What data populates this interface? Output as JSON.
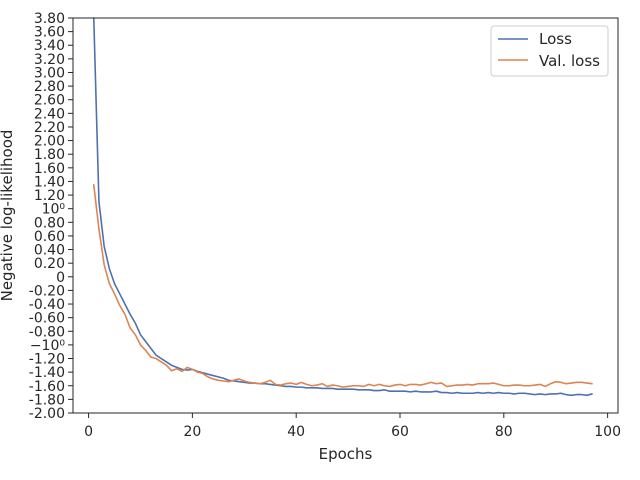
{
  "chart_data": {
    "type": "line",
    "xlabel": "Epochs",
    "ylabel": "Negative log-likelihood",
    "xlim": [
      -3,
      102
    ],
    "ylim": [
      -2.0,
      3.8
    ],
    "grid": false,
    "legend_placement": "top-right",
    "x_ticks": [
      {
        "value": 0,
        "label": "0"
      },
      {
        "value": 20,
        "label": "20"
      },
      {
        "value": 40,
        "label": "40"
      },
      {
        "value": 60,
        "label": "60"
      },
      {
        "value": 80,
        "label": "80"
      },
      {
        "value": 100,
        "label": "100"
      }
    ],
    "y_ticks": [
      {
        "value": -2.0,
        "label": "-2.00"
      },
      {
        "value": -1.8,
        "label": "-1.80"
      },
      {
        "value": -1.6,
        "label": "-1.60"
      },
      {
        "value": -1.4,
        "label": "-1.40"
      },
      {
        "value": -1.2,
        "label": "-1.20"
      },
      {
        "value": -1.0,
        "label": "−10⁰"
      },
      {
        "value": -0.8,
        "label": "-0.80"
      },
      {
        "value": -0.6,
        "label": "-0.60"
      },
      {
        "value": -0.4,
        "label": "-0.40"
      },
      {
        "value": -0.2,
        "label": "-0.20"
      },
      {
        "value": 0.0,
        "label": "0"
      },
      {
        "value": 0.2,
        "label": "0.20"
      },
      {
        "value": 0.4,
        "label": "0.40"
      },
      {
        "value": 0.6,
        "label": "0.60"
      },
      {
        "value": 0.8,
        "label": "0.80"
      },
      {
        "value": 1.0,
        "label": "10⁰"
      },
      {
        "value": 1.2,
        "label": "1.20"
      },
      {
        "value": 1.4,
        "label": "1.40"
      },
      {
        "value": 1.6,
        "label": "1.60"
      },
      {
        "value": 1.8,
        "label": "1.80"
      },
      {
        "value": 2.0,
        "label": "2.00"
      },
      {
        "value": 2.2,
        "label": "2.20"
      },
      {
        "value": 2.4,
        "label": "2.40"
      },
      {
        "value": 2.6,
        "label": "2.60"
      },
      {
        "value": 2.8,
        "label": "2.80"
      },
      {
        "value": 3.0,
        "label": "3.00"
      },
      {
        "value": 3.2,
        "label": "3.20"
      },
      {
        "value": 3.4,
        "label": "3.40"
      },
      {
        "value": 3.6,
        "label": "3.60"
      },
      {
        "value": 3.8,
        "label": "3.80"
      }
    ],
    "series": [
      {
        "name": "Loss",
        "color": "#4c72b0",
        "x": [
          1,
          2,
          3,
          4,
          5,
          6,
          7,
          8,
          9,
          10,
          11,
          12,
          13,
          14,
          15,
          16,
          17,
          18,
          19,
          20,
          21,
          22,
          23,
          24,
          25,
          26,
          27,
          28,
          29,
          30,
          31,
          32,
          33,
          34,
          35,
          36,
          37,
          38,
          39,
          40,
          41,
          42,
          43,
          44,
          45,
          46,
          47,
          48,
          49,
          50,
          51,
          52,
          53,
          54,
          55,
          56,
          57,
          58,
          59,
          60,
          61,
          62,
          63,
          64,
          65,
          66,
          67,
          68,
          69,
          70,
          71,
          72,
          73,
          74,
          75,
          76,
          77,
          78,
          79,
          80,
          81,
          82,
          83,
          84,
          85,
          86,
          87,
          88,
          89,
          90,
          91,
          92,
          93,
          94,
          95,
          96,
          97
        ],
        "y": [
          3.8,
          1.1,
          0.45,
          0.12,
          -0.1,
          -0.25,
          -0.4,
          -0.55,
          -0.68,
          -0.85,
          -0.95,
          -1.05,
          -1.15,
          -1.2,
          -1.25,
          -1.3,
          -1.33,
          -1.36,
          -1.37,
          -1.36,
          -1.39,
          -1.41,
          -1.43,
          -1.45,
          -1.47,
          -1.49,
          -1.52,
          -1.53,
          -1.54,
          -1.55,
          -1.56,
          -1.56,
          -1.57,
          -1.57,
          -1.58,
          -1.59,
          -1.6,
          -1.61,
          -1.61,
          -1.62,
          -1.62,
          -1.63,
          -1.63,
          -1.63,
          -1.64,
          -1.64,
          -1.64,
          -1.65,
          -1.65,
          -1.65,
          -1.65,
          -1.66,
          -1.66,
          -1.66,
          -1.67,
          -1.67,
          -1.66,
          -1.68,
          -1.68,
          -1.68,
          -1.68,
          -1.69,
          -1.68,
          -1.69,
          -1.69,
          -1.69,
          -1.68,
          -1.7,
          -1.7,
          -1.71,
          -1.7,
          -1.71,
          -1.71,
          -1.71,
          -1.7,
          -1.71,
          -1.7,
          -1.71,
          -1.7,
          -1.71,
          -1.71,
          -1.72,
          -1.71,
          -1.71,
          -1.72,
          -1.73,
          -1.72,
          -1.73,
          -1.72,
          -1.72,
          -1.71,
          -1.73,
          -1.74,
          -1.73,
          -1.73,
          -1.74,
          -1.72
        ]
      },
      {
        "name": "Val. loss",
        "color": "#dd8452",
        "x": [
          1,
          2,
          3,
          4,
          5,
          6,
          7,
          8,
          9,
          10,
          11,
          12,
          13,
          14,
          15,
          16,
          17,
          18,
          19,
          20,
          21,
          22,
          23,
          24,
          25,
          26,
          27,
          28,
          29,
          30,
          31,
          32,
          33,
          34,
          35,
          36,
          37,
          38,
          39,
          40,
          41,
          42,
          43,
          44,
          45,
          46,
          47,
          48,
          49,
          50,
          51,
          52,
          53,
          54,
          55,
          56,
          57,
          58,
          59,
          60,
          61,
          62,
          63,
          64,
          65,
          66,
          67,
          68,
          69,
          70,
          71,
          72,
          73,
          74,
          75,
          76,
          77,
          78,
          79,
          80,
          81,
          82,
          83,
          84,
          85,
          86,
          87,
          88,
          89,
          90,
          91,
          92,
          93,
          94,
          95,
          96,
          97
        ],
        "y": [
          1.35,
          0.7,
          0.18,
          -0.1,
          -0.25,
          -0.42,
          -0.55,
          -0.75,
          -0.85,
          -1.0,
          -1.08,
          -1.18,
          -1.2,
          -1.25,
          -1.3,
          -1.38,
          -1.35,
          -1.39,
          -1.33,
          -1.36,
          -1.4,
          -1.42,
          -1.47,
          -1.5,
          -1.52,
          -1.53,
          -1.54,
          -1.52,
          -1.5,
          -1.53,
          -1.55,
          -1.56,
          -1.57,
          -1.55,
          -1.52,
          -1.58,
          -1.59,
          -1.57,
          -1.56,
          -1.58,
          -1.55,
          -1.58,
          -1.6,
          -1.59,
          -1.57,
          -1.61,
          -1.59,
          -1.6,
          -1.62,
          -1.61,
          -1.6,
          -1.6,
          -1.61,
          -1.58,
          -1.6,
          -1.58,
          -1.6,
          -1.61,
          -1.59,
          -1.58,
          -1.6,
          -1.58,
          -1.58,
          -1.59,
          -1.57,
          -1.55,
          -1.57,
          -1.56,
          -1.61,
          -1.6,
          -1.59,
          -1.59,
          -1.58,
          -1.59,
          -1.57,
          -1.57,
          -1.57,
          -1.56,
          -1.58,
          -1.6,
          -1.6,
          -1.59,
          -1.59,
          -1.6,
          -1.6,
          -1.59,
          -1.58,
          -1.61,
          -1.57,
          -1.54,
          -1.55,
          -1.57,
          -1.56,
          -1.55,
          -1.55,
          -1.56,
          -1.57
        ]
      }
    ]
  }
}
